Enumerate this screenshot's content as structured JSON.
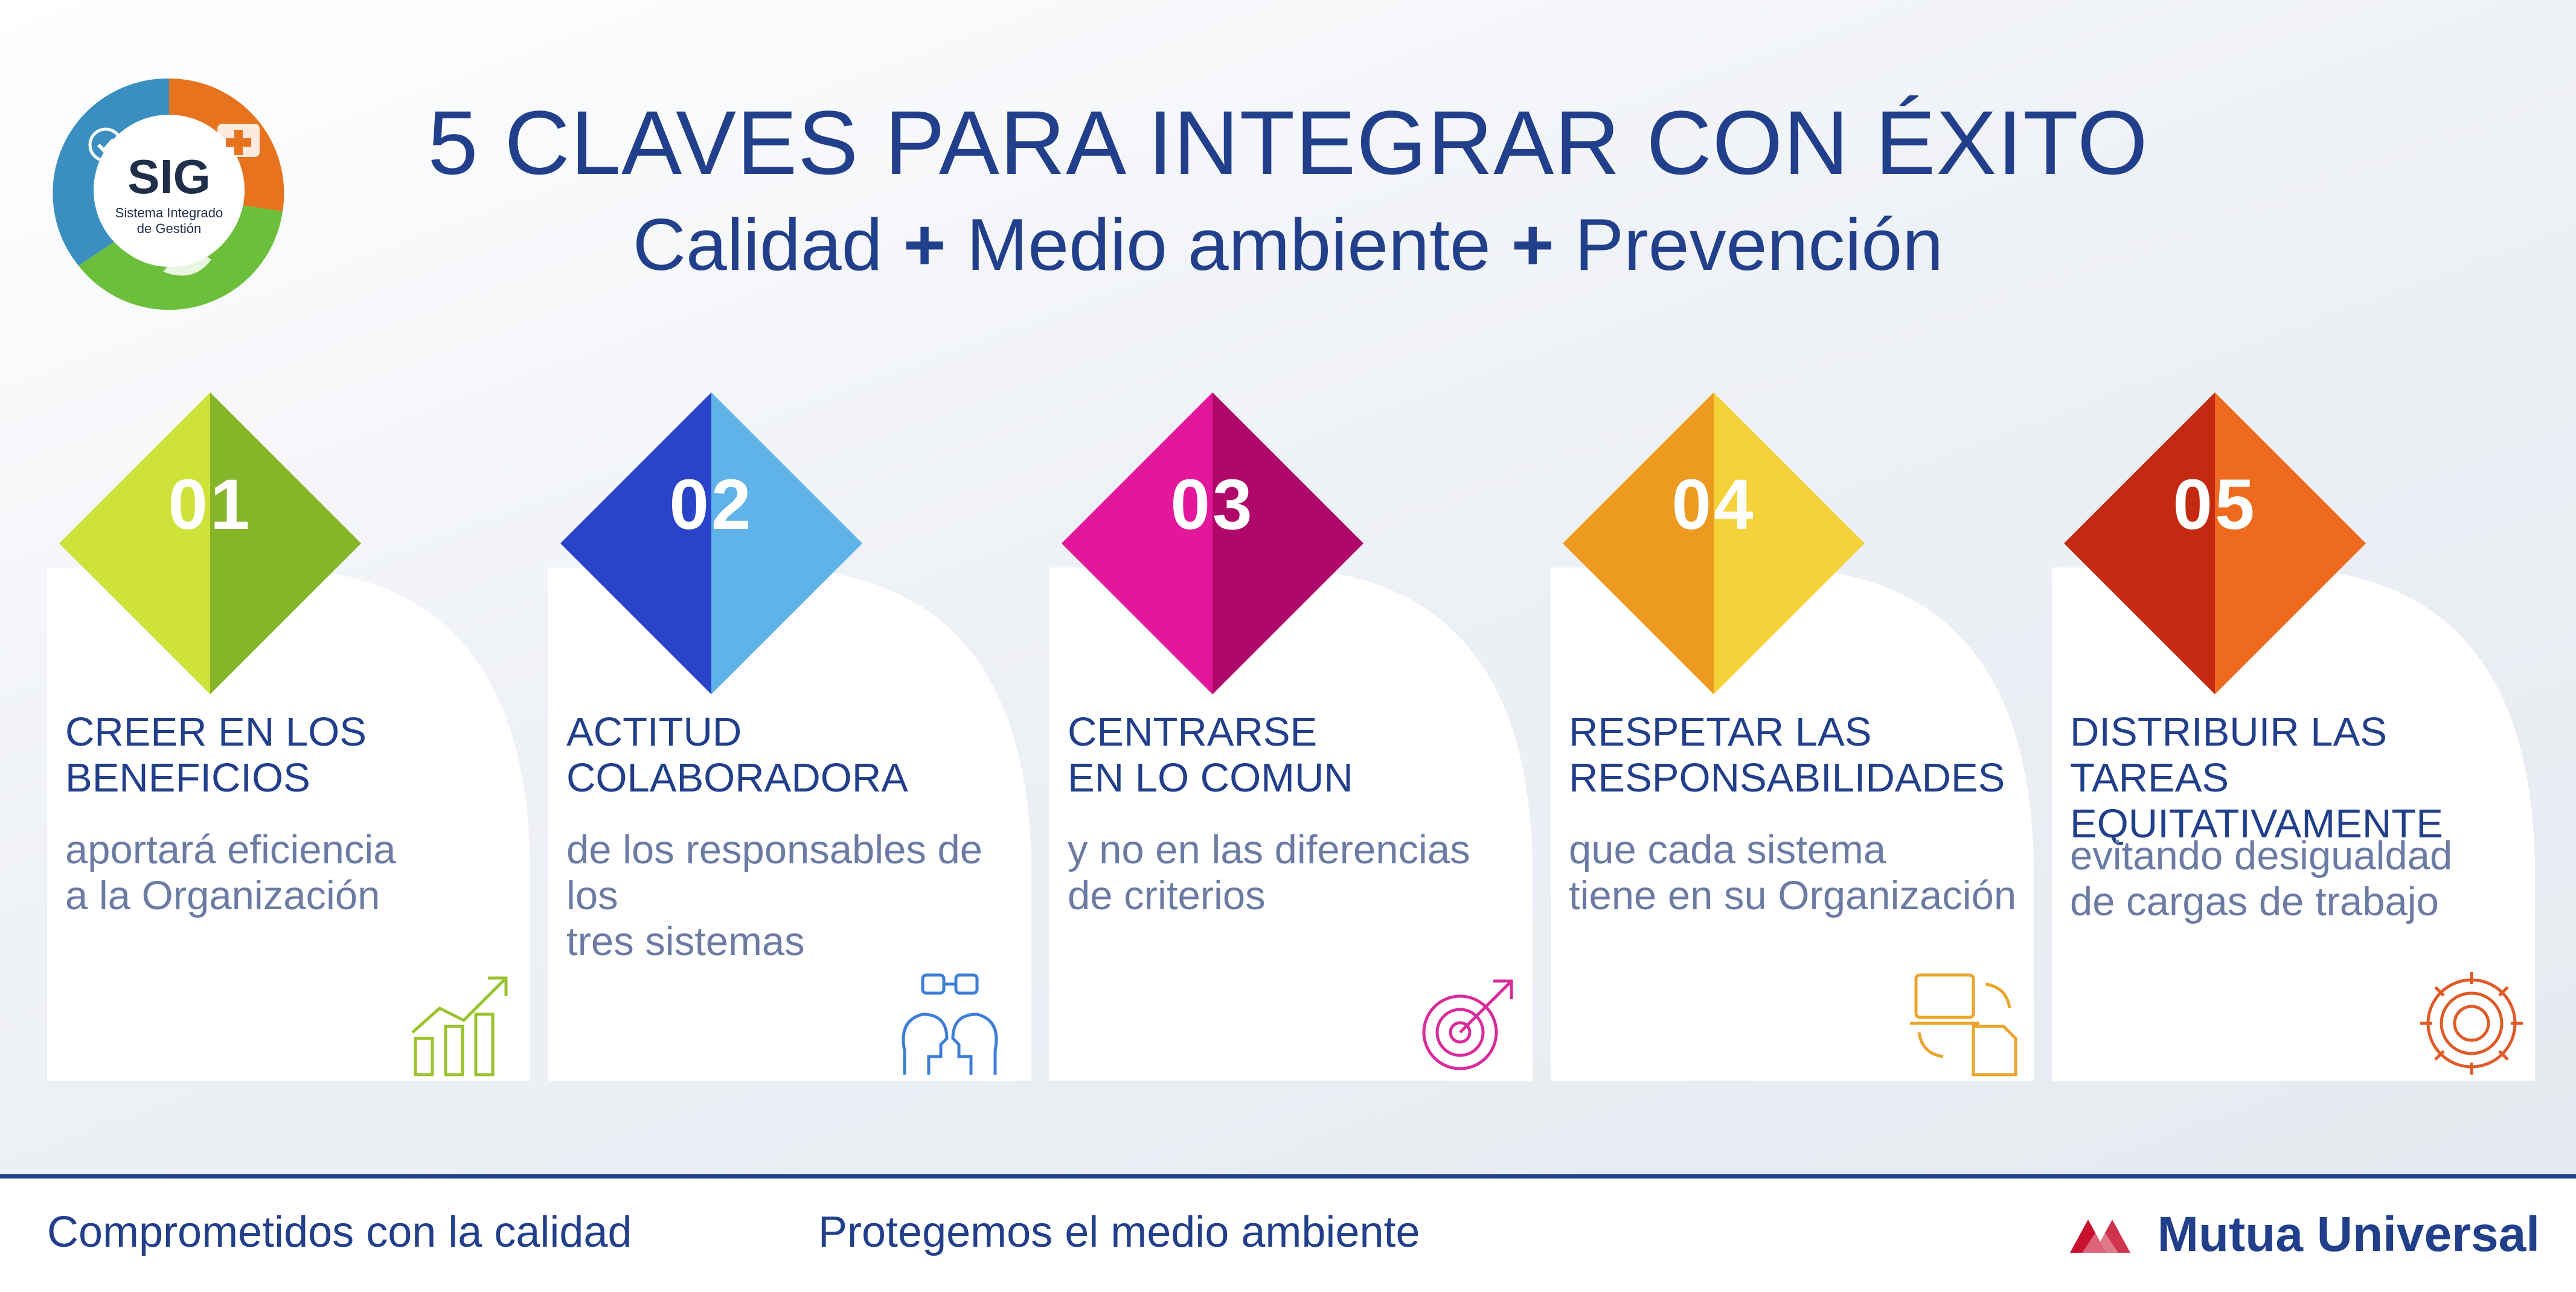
{
  "header": {
    "title": "5 CLAVES PARA INTEGRAR CON ÉXITO",
    "subtitle_parts": [
      "Calidad",
      "+",
      "Medio ambiente",
      "+",
      "Prevención"
    ]
  },
  "logo": {
    "acronym": "SIG",
    "caption_line1": "Sistema Integrado",
    "caption_line2": "de Gestión",
    "colors": [
      "#3a8fc0",
      "#e8731f",
      "#6cbf3a"
    ]
  },
  "keys": [
    {
      "number": "01",
      "title": "CREER EN LOS\nBENEFICIOS",
      "description": "aportará eficiencia\na la Organización",
      "icon": "growth-chart-icon",
      "color_light": "#cfe23a",
      "color_dark": "#86b52a"
    },
    {
      "number": "02",
      "title": "ACTITUD\nCOLABORADORA",
      "description": "de los responsables de los\ntres sistemas",
      "icon": "collaboration-heads-icon",
      "color_light": "#5fb3e8",
      "color_dark": "#2a43c8"
    },
    {
      "number": "03",
      "title": "CENTRARSE\nEN LO COMUN",
      "description": "y no en las diferencias\nde criterios",
      "icon": "target-icon",
      "color_light": "#e2179b",
      "color_dark": "#b0086a"
    },
    {
      "number": "04",
      "title": "RESPETAR LAS\nRESPONSABILIDADES",
      "description": "que cada sistema\ntiene en su Organización",
      "icon": "computer-document-icon",
      "color_light": "#f6d23a",
      "color_dark": "#ec9a20"
    },
    {
      "number": "05",
      "title": "DISTRIBUIR LAS TAREAS\nEQUITATIVAMENTE",
      "description": "evitando desigualdad\nde cargas de trabajo",
      "icon": "gear-cycle-icon",
      "color_light": "#ee6a1e",
      "color_dark": "#c42a12"
    }
  ],
  "footer": {
    "slogan_left": "Comprometidos con la calidad",
    "slogan_center": "Protegemos el medio ambiente",
    "brand": "Mutua Universal",
    "brand_color": "#c8102e"
  }
}
